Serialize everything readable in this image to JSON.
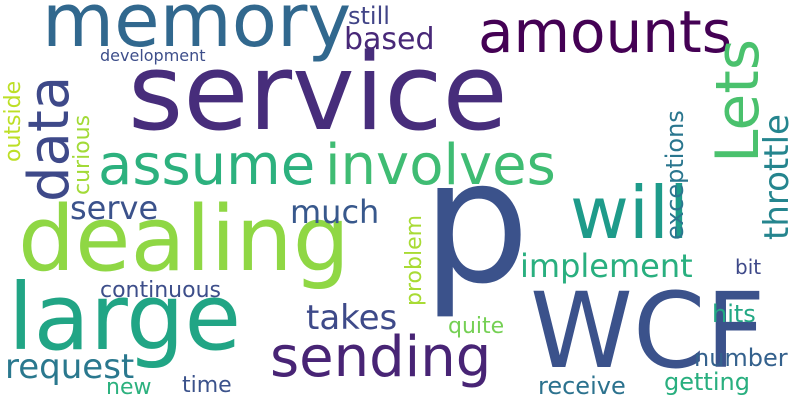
{
  "words": {
    "service": {
      "text": "service",
      "color": "#472d7b"
    },
    "p": {
      "text": "p",
      "color": "#3b528b"
    },
    "wcf": {
      "text": "WCF",
      "color": "#3b528b"
    },
    "dealing": {
      "text": "dealing",
      "color": "#8fd744"
    },
    "large": {
      "text": "large",
      "color": "#21a585"
    },
    "memory": {
      "text": "memory",
      "color": "#31688e"
    },
    "amounts": {
      "text": "amounts",
      "color": "#440154"
    },
    "will": {
      "text": "will",
      "color": "#1e9b8a"
    },
    "assume": {
      "text": "assume",
      "color": "#2cb17e"
    },
    "involves": {
      "text": "involves",
      "color": "#3fbc73"
    },
    "sending": {
      "text": "sending",
      "color": "#482475"
    },
    "lets": {
      "text": "Lets",
      "color": "#4ac16d"
    },
    "data": {
      "text": "data",
      "color": "#3e4989"
    },
    "throttle": {
      "text": "throttle",
      "color": "#25858e"
    },
    "implement": {
      "text": "implement",
      "color": "#29af7f"
    },
    "request": {
      "text": "request",
      "color": "#2a788e"
    },
    "takes": {
      "text": "takes",
      "color": "#3e4a89"
    },
    "much": {
      "text": "much",
      "color": "#38588c"
    },
    "serve": {
      "text": "serve",
      "color": "#3b528b"
    },
    "based": {
      "text": "based",
      "color": "#482878"
    },
    "still": {
      "text": "still",
      "color": "#414487"
    },
    "continuous": {
      "text": "continuous",
      "color": "#3d4e8a"
    },
    "exceptions": {
      "text": "exceptions",
      "color": "#2a768e"
    },
    "curious": {
      "text": "curious",
      "color": "#a2da37"
    },
    "outside": {
      "text": "outside",
      "color": "#bddf26"
    },
    "problem": {
      "text": "problem",
      "color": "#a8db34"
    },
    "development": {
      "text": "development",
      "color": "#3d4e8a"
    },
    "quite": {
      "text": "quite",
      "color": "#75d054"
    },
    "hits": {
      "text": "hits",
      "color": "#22a884"
    },
    "number": {
      "text": "number",
      "color": "#34618d"
    },
    "bit": {
      "text": "bit",
      "color": "#3e4989"
    },
    "receive": {
      "text": "receive",
      "color": "#2c728e"
    },
    "getting": {
      "text": "getting",
      "color": "#29af7f"
    },
    "new": {
      "text": "new",
      "color": "#2cb17e"
    },
    "time": {
      "text": "time",
      "color": "#3b528b"
    }
  }
}
